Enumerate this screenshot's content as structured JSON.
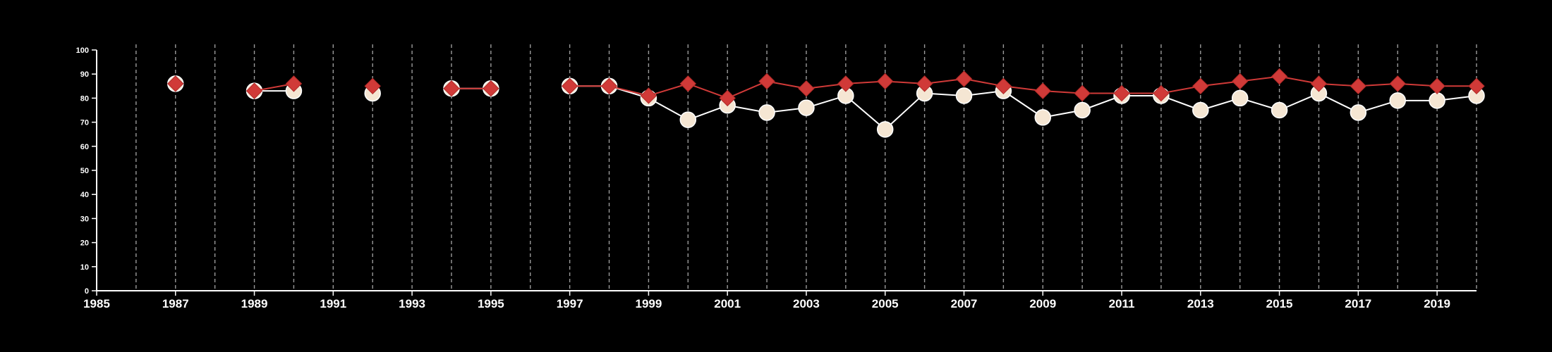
{
  "chart_data": {
    "type": "line",
    "xlim": [
      1985,
      2020
    ],
    "ylim": [
      0,
      100
    ],
    "x_ticks": [
      "1985",
      "1987",
      "1989",
      "1991",
      "1993",
      "1995",
      "1997",
      "1999",
      "2001",
      "2003",
      "2005",
      "2007",
      "2009",
      "2011",
      "2013",
      "2015",
      "2017",
      "2019"
    ],
    "y_ticks": [
      "0",
      "10",
      "20",
      "30",
      "40",
      "50",
      "60",
      "70",
      "80",
      "90",
      "100"
    ],
    "grid": "vertical dashed lines at each year",
    "legend": "none",
    "series": [
      {
        "marker": "circle",
        "color": "#ffffff",
        "fill": "#f5e6d3",
        "points": [
          [
            1987,
            86
          ],
          [
            1989,
            83
          ],
          [
            1990,
            83
          ],
          [
            1992,
            82
          ],
          [
            1994,
            84
          ],
          [
            1995,
            84
          ],
          [
            1997,
            85
          ],
          [
            1998,
            85
          ],
          [
            1999,
            80
          ],
          [
            2000,
            71
          ],
          [
            2001,
            77
          ],
          [
            2002,
            74
          ],
          [
            2003,
            76
          ],
          [
            2004,
            81
          ],
          [
            2005,
            67
          ],
          [
            2006,
            82
          ],
          [
            2007,
            81
          ],
          [
            2008,
            83
          ],
          [
            2009,
            72
          ],
          [
            2010,
            75
          ],
          [
            2011,
            81
          ],
          [
            2012,
            81
          ],
          [
            2013,
            75
          ],
          [
            2014,
            80
          ],
          [
            2015,
            75
          ],
          [
            2016,
            82
          ],
          [
            2017,
            74
          ],
          [
            2018,
            79
          ],
          [
            2019,
            79
          ],
          [
            2020,
            81
          ]
        ]
      },
      {
        "marker": "diamond",
        "color": "#d03a38",
        "fill": "#d03a38",
        "points": [
          [
            1987,
            86
          ],
          [
            1989,
            83
          ],
          [
            1990,
            86
          ],
          [
            1992,
            85
          ],
          [
            1994,
            84
          ],
          [
            1995,
            84
          ],
          [
            1997,
            85
          ],
          [
            1998,
            85
          ],
          [
            1999,
            81
          ],
          [
            2000,
            86
          ],
          [
            2001,
            80
          ],
          [
            2002,
            87
          ],
          [
            2003,
            84
          ],
          [
            2004,
            86
          ],
          [
            2005,
            87
          ],
          [
            2006,
            86
          ],
          [
            2007,
            88
          ],
          [
            2008,
            85
          ],
          [
            2009,
            83
          ],
          [
            2010,
            82
          ],
          [
            2011,
            82
          ],
          [
            2012,
            82
          ],
          [
            2013,
            85
          ],
          [
            2014,
            87
          ],
          [
            2015,
            89
          ],
          [
            2016,
            86
          ],
          [
            2017,
            85
          ],
          [
            2018,
            86
          ],
          [
            2019,
            85
          ],
          [
            2020,
            85
          ]
        ]
      }
    ]
  }
}
